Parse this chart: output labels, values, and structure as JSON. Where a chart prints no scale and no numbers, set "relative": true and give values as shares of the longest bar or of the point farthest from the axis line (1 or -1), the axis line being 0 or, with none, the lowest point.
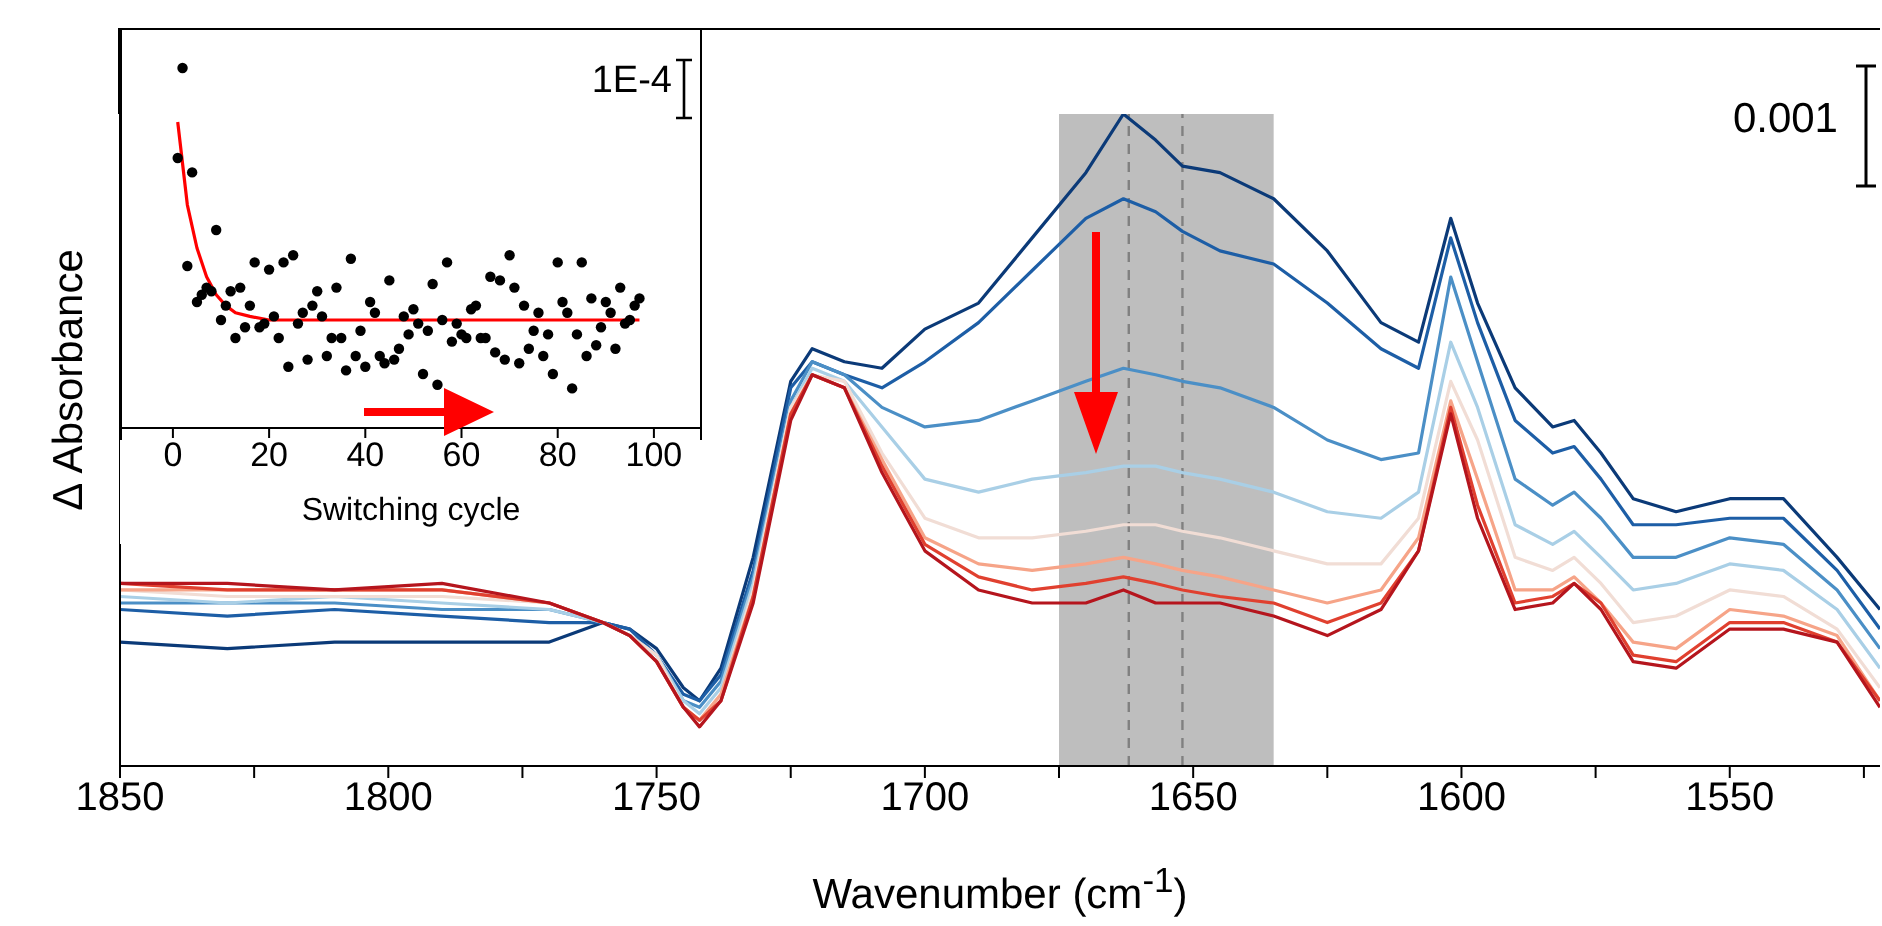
{
  "chart_data": [
    {
      "type": "line",
      "xlabel": "Wavenumber (cm$^{-1}$)",
      "ylabel": "Δ Absorbance",
      "relative": true,
      "xlim": [
        1850,
        1522
      ],
      "xticks": [
        1850,
        {
          "value": 1825,
          "label": null
        },
        1800,
        {
          "value": 1775,
          "label": null
        },
        1750,
        {
          "value": 1725,
          "label": null
        },
        1700,
        {
          "value": 1675,
          "label": null
        },
        1650,
        {
          "value": 1625,
          "label": null
        },
        1600,
        {
          "value": 1575,
          "label": null
        },
        1550,
        {
          "value": 1525,
          "label": null
        }
      ],
      "marker": "none",
      "line_style": "solid",
      "x": [
        1850,
        1830,
        1810,
        1790,
        1770,
        1760,
        1755,
        1750,
        1745,
        1742,
        1738,
        1732,
        1725,
        1721,
        1715,
        1708,
        1700,
        1690,
        1680,
        1670,
        1663,
        1657,
        1652,
        1645,
        1635,
        1625,
        1615,
        1608,
        1602,
        1597,
        1590,
        1583,
        1579,
        1574,
        1568,
        1560,
        1550,
        1540,
        1530,
        1522
      ],
      "series": [
        {
          "type": "line",
          "color": "#0b3a78",
          "values": [
            0.19,
            0.18,
            0.19,
            0.19,
            0.19,
            0.22,
            0.21,
            0.18,
            0.12,
            0.1,
            0.15,
            0.32,
            0.59,
            0.64,
            0.62,
            0.61,
            0.67,
            0.71,
            0.81,
            0.91,
            1,
            0.96,
            0.92,
            0.91,
            0.87,
            0.79,
            0.68,
            0.65,
            0.84,
            0.71,
            0.58,
            0.52,
            0.53,
            0.48,
            0.41,
            0.39,
            0.41,
            0.41,
            0.32,
            0.24
          ]
        },
        {
          "type": "line",
          "color": "#1d5ea6",
          "values": [
            0.24,
            0.23,
            0.24,
            0.23,
            0.22,
            0.22,
            0.21,
            0.17,
            0.11,
            0.1,
            0.14,
            0.3,
            0.58,
            0.62,
            0.6,
            0.58,
            0.62,
            0.68,
            0.76,
            0.84,
            0.87,
            0.85,
            0.82,
            0.79,
            0.77,
            0.71,
            0.64,
            0.61,
            0.81,
            0.68,
            0.53,
            0.48,
            0.49,
            0.44,
            0.37,
            0.37,
            0.38,
            0.38,
            0.3,
            0.21
          ]
        },
        {
          "type": "line",
          "color": "#4b8fc6",
          "values": [
            0.25,
            0.25,
            0.25,
            0.24,
            0.24,
            0.22,
            0.2,
            0.17,
            0.1,
            0.09,
            0.13,
            0.29,
            0.56,
            0.62,
            0.6,
            0.55,
            0.52,
            0.53,
            0.56,
            0.59,
            0.61,
            0.6,
            0.59,
            0.58,
            0.55,
            0.5,
            0.47,
            0.48,
            0.75,
            0.62,
            0.44,
            0.4,
            0.42,
            0.38,
            0.32,
            0.32,
            0.35,
            0.34,
            0.27,
            0.18
          ]
        },
        {
          "type": "line",
          "color": "#a9cfe6",
          "values": [
            0.26,
            0.25,
            0.26,
            0.25,
            0.24,
            0.22,
            0.2,
            0.17,
            0.1,
            0.08,
            0.12,
            0.28,
            0.55,
            0.61,
            0.59,
            0.52,
            0.44,
            0.42,
            0.44,
            0.45,
            0.46,
            0.46,
            0.45,
            0.44,
            0.42,
            0.39,
            0.38,
            0.42,
            0.65,
            0.55,
            0.37,
            0.34,
            0.36,
            0.32,
            0.27,
            0.28,
            0.31,
            0.3,
            0.24,
            0.15
          ]
        },
        {
          "type": "line",
          "color": "#f1ddd5",
          "values": [
            0.27,
            0.26,
            0.26,
            0.26,
            0.25,
            0.22,
            0.2,
            0.17,
            0.09,
            0.07,
            0.11,
            0.27,
            0.55,
            0.6,
            0.59,
            0.48,
            0.38,
            0.35,
            0.35,
            0.36,
            0.37,
            0.37,
            0.36,
            0.35,
            0.33,
            0.31,
            0.31,
            0.38,
            0.59,
            0.5,
            0.32,
            0.3,
            0.32,
            0.28,
            0.22,
            0.23,
            0.27,
            0.26,
            0.21,
            0.12
          ]
        },
        {
          "type": "line",
          "color": "#f6a488",
          "values": [
            0.27,
            0.27,
            0.27,
            0.27,
            0.25,
            0.22,
            0.2,
            0.16,
            0.09,
            0.07,
            0.11,
            0.26,
            0.54,
            0.6,
            0.58,
            0.47,
            0.35,
            0.31,
            0.3,
            0.31,
            0.32,
            0.31,
            0.3,
            0.29,
            0.27,
            0.25,
            0.27,
            0.35,
            0.56,
            0.44,
            0.27,
            0.27,
            0.29,
            0.25,
            0.19,
            0.18,
            0.24,
            0.23,
            0.2,
            0.1
          ]
        },
        {
          "type": "line",
          "color": "#e0402f",
          "values": [
            0.28,
            0.27,
            0.27,
            0.27,
            0.25,
            0.22,
            0.2,
            0.16,
            0.09,
            0.07,
            0.1,
            0.26,
            0.54,
            0.6,
            0.58,
            0.46,
            0.34,
            0.29,
            0.27,
            0.28,
            0.29,
            0.28,
            0.27,
            0.26,
            0.25,
            0.22,
            0.25,
            0.33,
            0.55,
            0.4,
            0.25,
            0.26,
            0.28,
            0.25,
            0.17,
            0.16,
            0.22,
            0.22,
            0.19,
            0.1
          ]
        },
        {
          "type": "line",
          "color": "#b5151d",
          "values": [
            0.28,
            0.28,
            0.27,
            0.28,
            0.25,
            0.22,
            0.2,
            0.16,
            0.09,
            0.06,
            0.1,
            0.25,
            0.53,
            0.6,
            0.58,
            0.45,
            0.33,
            0.27,
            0.25,
            0.25,
            0.27,
            0.25,
            0.25,
            0.25,
            0.23,
            0.2,
            0.24,
            0.33,
            0.54,
            0.38,
            0.24,
            0.25,
            0.28,
            0.24,
            0.16,
            0.15,
            0.21,
            0.21,
            0.19,
            0.09
          ]
        }
      ],
      "bands": [
        {
          "axis": "x",
          "from": 1675,
          "to": 1635,
          "color": "#bebebe"
        }
      ],
      "ref_lines": [
        {
          "axis": "x",
          "value": 1662,
          "color": "#808080",
          "line_style": "dashed"
        },
        {
          "axis": "x",
          "value": 1652,
          "color": "#808080",
          "line_style": "dashed"
        }
      ],
      "annotations": [
        "0.001"
      ]
    },
    {
      "type": "scatter",
      "xlabel": "Switching cycle",
      "relative": true,
      "xlim": [
        -11,
        110
      ],
      "xticks": [
        0,
        20,
        40,
        60,
        80,
        100
      ],
      "series": [
        {
          "type": "scatter",
          "color": "#000000",
          "marker": "circle",
          "x": [
            1,
            2,
            3,
            4,
            5,
            6,
            7,
            8,
            9,
            10,
            11,
            12,
            13,
            14,
            15,
            16,
            17,
            18,
            19,
            20,
            21,
            22,
            23,
            24,
            25,
            26,
            27,
            28,
            29,
            30,
            31,
            32,
            33,
            34,
            35,
            36,
            37,
            38,
            39,
            40,
            41,
            42,
            43,
            44,
            45,
            46,
            47,
            48,
            49,
            50,
            51,
            52,
            53,
            54,
            55,
            56,
            57,
            58,
            59,
            60,
            61,
            62,
            63,
            64,
            65,
            66,
            67,
            68,
            69,
            70,
            71,
            72,
            73,
            74,
            75,
            76,
            77,
            78,
            79,
            80,
            81,
            82,
            83,
            84,
            85,
            86,
            87,
            88,
            89,
            90,
            91,
            92,
            93,
            94,
            95,
            96,
            97
          ],
          "values": [
            0.75,
            1,
            0.45,
            0.71,
            0.35,
            0.37,
            0.39,
            0.38,
            0.55,
            0.3,
            0.34,
            0.38,
            0.25,
            0.39,
            0.28,
            0.34,
            0.46,
            0.28,
            0.29,
            0.44,
            0.31,
            0.25,
            0.46,
            0.17,
            0.48,
            0.29,
            0.32,
            0.19,
            0.34,
            0.38,
            0.31,
            0.2,
            0.25,
            0.39,
            0.25,
            0.16,
            0.47,
            0.2,
            0.27,
            0.17,
            0.35,
            0.32,
            0.2,
            0.18,
            0.41,
            0.19,
            0.22,
            0.31,
            0.26,
            0.33,
            0.29,
            0.15,
            0.27,
            0.4,
            0.12,
            0.3,
            0.46,
            0.24,
            0.29,
            0.26,
            0.25,
            0.33,
            0.34,
            0.25,
            0.25,
            0.42,
            0.21,
            0.41,
            0.19,
            0.48,
            0.39,
            0.18,
            0.34,
            0.22,
            0.27,
            0.32,
            0.2,
            0.26,
            0.15,
            0.46,
            0.35,
            0.32,
            0.11,
            0.26,
            0.46,
            0.2,
            0.36,
            0.23,
            0.28,
            0.35,
            0.32,
            0.22,
            0.39,
            0.29,
            0.3,
            0.34,
            0.36
          ]
        },
        {
          "type": "line",
          "color": "#ff0000",
          "marker": "none",
          "x": [
            1,
            3,
            5,
            7,
            9,
            11,
            13,
            16,
            20,
            30,
            50,
            97
          ],
          "values": [
            0.85,
            0.62,
            0.5,
            0.42,
            0.37,
            0.34,
            0.32,
            0.31,
            0.3,
            0.3,
            0.3,
            0.3
          ]
        }
      ],
      "annotations": [
        "1E-4"
      ]
    }
  ]
}
